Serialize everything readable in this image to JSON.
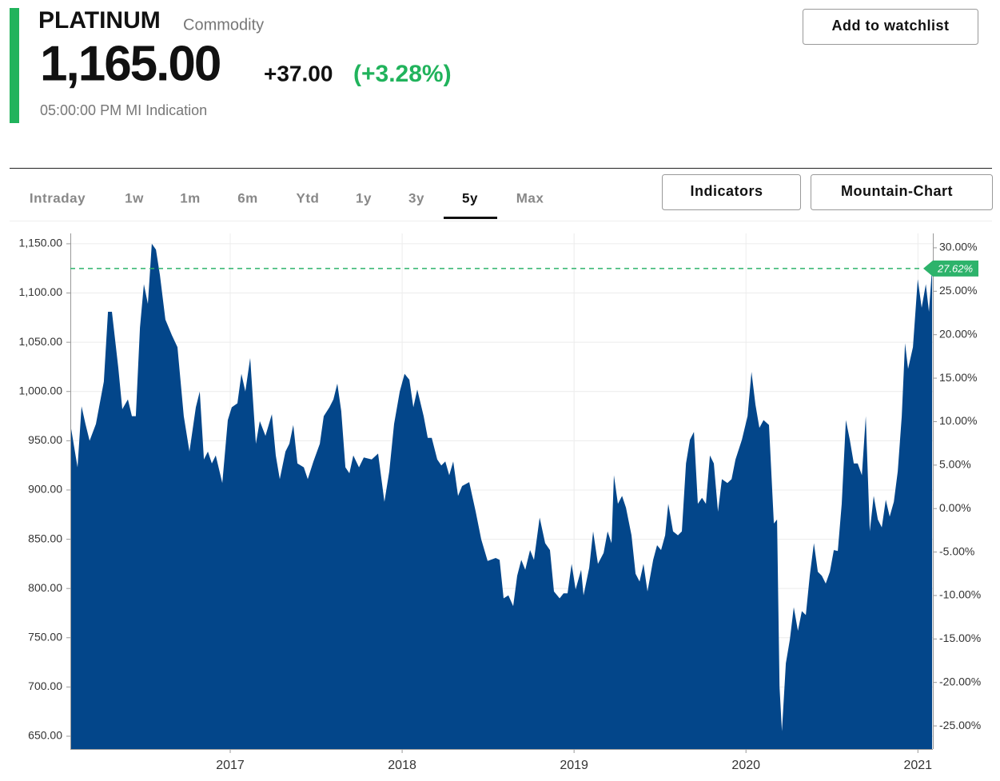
{
  "header": {
    "title": "PLATINUM",
    "kind": "Commodity",
    "price": "1,165.00",
    "change": "+37.00",
    "change_pct": "(+3.28%)",
    "time": "05:00:00 PM MI Indication",
    "watchlist": "Add to watchlist"
  },
  "tabs": {
    "items": [
      "Intraday",
      "1w",
      "1m",
      "6m",
      "Ytd",
      "1y",
      "3y",
      "5y",
      "Max"
    ],
    "active": 7
  },
  "buttons": [
    "Indicators",
    "Mountain-Chart"
  ],
  "chart_data": {
    "type": "area",
    "color": "#03468a",
    "xlim": [
      2016.07,
      2021.087
    ],
    "xticks": [
      2017,
      2018,
      2019,
      2020,
      2021
    ],
    "ylim": [
      637,
      1160.5
    ],
    "yticks": [
      {
        "value": 650,
        "label": "650.00"
      },
      {
        "value": 700,
        "label": "700.00"
      },
      {
        "value": 750,
        "label": "750.00"
      },
      {
        "value": 800,
        "label": "800.00"
      },
      {
        "value": 850,
        "label": "850.00"
      },
      {
        "value": 900,
        "label": "900.00"
      },
      {
        "value": 950,
        "label": "950.00"
      },
      {
        "value": 1000,
        "label": "1,000.00"
      },
      {
        "value": 1050,
        "label": "1,050.00"
      },
      {
        "value": 1100,
        "label": "1,100.00"
      },
      {
        "value": 1150,
        "label": "1,150.00"
      }
    ],
    "y2lim": [
      -27.66,
      31.65
    ],
    "y2ticks": [
      {
        "value": -25,
        "label": "-25.00%"
      },
      {
        "value": -20,
        "label": "-20.00%"
      },
      {
        "value": -15,
        "label": "-15.00%"
      },
      {
        "value": -10,
        "label": "-10.00%"
      },
      {
        "value": -5,
        "label": "-5.00%"
      },
      {
        "value": 0,
        "label": "0.00%"
      },
      {
        "value": 5,
        "label": "5.00%"
      },
      {
        "value": 10,
        "label": "10.00%"
      },
      {
        "value": 15,
        "label": "15.00%"
      },
      {
        "value": 20,
        "label": "20.00%"
      },
      {
        "value": 25,
        "label": "25.00%"
      },
      {
        "value": 30,
        "label": "30.00%"
      }
    ],
    "reference": {
      "value": 27.62,
      "label": "27.62%",
      "color": "#2db36b"
    },
    "grid": true,
    "x": [
      2016.07,
      2016.112,
      2016.135,
      2016.158,
      2016.182,
      2016.219,
      2016.265,
      2016.289,
      2016.312,
      2016.349,
      2016.372,
      2016.405,
      2016.428,
      2016.451,
      2016.475,
      2016.498,
      2016.521,
      2016.544,
      2016.568,
      2016.591,
      2016.623,
      2016.661,
      2016.693,
      2016.73,
      2016.763,
      2016.8,
      2016.823,
      2016.847,
      2016.87,
      2016.893,
      2016.916,
      2016.954,
      2016.986,
      2017.009,
      2017.042,
      2017.065,
      2017.088,
      2017.116,
      2017.149,
      2017.172,
      2017.205,
      2017.242,
      2017.265,
      2017.288,
      2017.321,
      2017.344,
      2017.367,
      2017.391,
      2017.428,
      2017.451,
      2017.484,
      2017.521,
      2017.544,
      2017.577,
      2017.6,
      2017.623,
      2017.646,
      2017.67,
      2017.693,
      2017.716,
      2017.749,
      2017.777,
      2017.823,
      2017.86,
      2017.897,
      2017.925,
      2017.953,
      2017.986,
      2018.014,
      2018.042,
      2018.065,
      2018.088,
      2018.125,
      2018.149,
      2018.172,
      2018.204,
      2018.228,
      2018.251,
      2018.274,
      2018.297,
      2018.325,
      2018.349,
      2018.39,
      2018.428,
      2018.46,
      2018.497,
      2018.544,
      2018.567,
      2018.59,
      2018.618,
      2018.646,
      2018.669,
      2018.693,
      2018.716,
      2018.744,
      2018.767,
      2018.8,
      2018.832,
      2018.86,
      2018.883,
      2018.916,
      2018.939,
      2018.962,
      2018.986,
      2019.009,
      2019.041,
      2019.055,
      2019.088,
      2019.111,
      2019.139,
      2019.172,
      2019.195,
      2019.218,
      2019.232,
      2019.255,
      2019.279,
      2019.302,
      2019.334,
      2019.358,
      2019.381,
      2019.404,
      2019.427,
      2019.46,
      2019.483,
      2019.506,
      2019.53,
      2019.548,
      2019.576,
      2019.604,
      2019.627,
      2019.651,
      2019.674,
      2019.697,
      2019.72,
      2019.744,
      2019.767,
      2019.79,
      2019.813,
      2019.837,
      2019.86,
      2019.892,
      2019.916,
      2019.939,
      2019.976,
      2020.009,
      2020.032,
      2020.055,
      2020.078,
      2020.102,
      2020.134,
      2020.162,
      2020.181,
      2020.195,
      2020.209,
      2020.232,
      2020.255,
      2020.278,
      2020.302,
      2020.325,
      2020.348,
      2020.371,
      2020.395,
      2020.418,
      2020.441,
      2020.464,
      2020.488,
      2020.511,
      2020.534,
      2020.557,
      2020.581,
      2020.604,
      2020.627,
      2020.65,
      2020.674,
      2020.697,
      2020.72,
      2020.743,
      2020.767,
      2020.79,
      2020.813,
      2020.836,
      2020.86,
      2020.883,
      2020.906,
      2020.925,
      2020.943,
      2020.971,
      2020.999,
      2021.022,
      2021.046,
      2021.064,
      2021.083
    ],
    "values": [
      967,
      923,
      985,
      967,
      950,
      967,
      1010,
      1081,
      1081,
      1024,
      982,
      992,
      975,
      975,
      1065,
      1109,
      1089,
      1150,
      1144,
      1118,
      1073,
      1057,
      1045,
      975,
      939,
      984,
      1000,
      931,
      939,
      927,
      935,
      907,
      971,
      984,
      988,
      1018,
      1000,
      1034,
      947,
      970,
      955,
      977,
      935,
      911,
      939,
      947,
      966,
      927,
      923,
      911,
      929,
      947,
      975,
      984,
      992,
      1008,
      980,
      923,
      917,
      935,
      923,
      933,
      931,
      937,
      888,
      919,
      967,
      1000,
      1018,
      1012,
      984,
      1002,
      975,
      953,
      953,
      931,
      925,
      929,
      915,
      929,
      894,
      904,
      908,
      878,
      850,
      828,
      831,
      829,
      790,
      793,
      782,
      813,
      829,
      819,
      839,
      829,
      872,
      846,
      839,
      797,
      790,
      795,
      795,
      825,
      799,
      819,
      793,
      821,
      858,
      825,
      836,
      858,
      846,
      915,
      886,
      894,
      882,
      854,
      815,
      807,
      825,
      797,
      829,
      844,
      839,
      854,
      886,
      858,
      854,
      858,
      927,
      951,
      959,
      886,
      892,
      886,
      935,
      927,
      878,
      911,
      907,
      911,
      931,
      951,
      975,
      1020,
      987,
      963,
      971,
      966,
      866,
      870,
      700,
      655,
      724,
      748,
      781,
      757,
      777,
      773,
      813,
      846,
      817,
      813,
      805,
      817,
      839,
      838,
      886,
      971,
      951,
      927,
      927,
      915,
      975,
      858,
      894,
      870,
      862,
      890,
      873,
      888,
      919,
      975,
      1049,
      1023,
      1045,
      1114,
      1085,
      1109,
      1081,
      1126
    ]
  }
}
